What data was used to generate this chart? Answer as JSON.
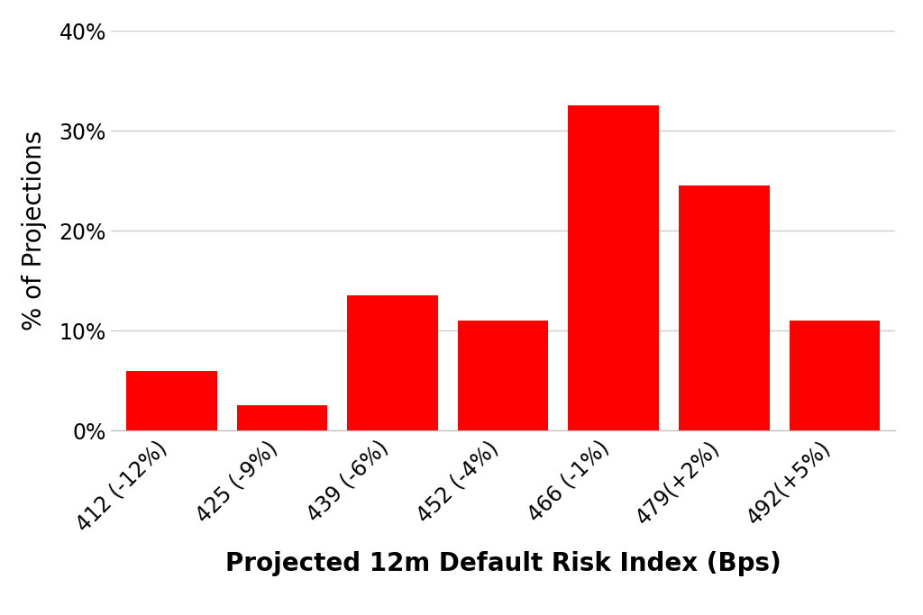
{
  "categories": [
    "412 (-12%)",
    "425 (-9%)",
    "439 (-6%)",
    "452 (-4%)",
    "466 (-1%)",
    "479(+2%)",
    "492(+5%)"
  ],
  "values": [
    6.0,
    2.5,
    13.5,
    11.0,
    32.5,
    24.5,
    11.0
  ],
  "bar_color": "#ff0000",
  "xlabel": "Projected 12m Default Risk Index (Bps)",
  "ylabel": "% of Projections",
  "ylim": [
    0,
    40
  ],
  "yticks": [
    0,
    10,
    20,
    30,
    40
  ],
  "ytick_labels": [
    "0%",
    "10%",
    "20%",
    "30%",
    "40%"
  ],
  "background_color": "#ffffff",
  "grid_color": "#cccccc",
  "xlabel_fontsize": 20,
  "ylabel_fontsize": 20,
  "tick_fontsize": 17,
  "bar_width": 0.82
}
